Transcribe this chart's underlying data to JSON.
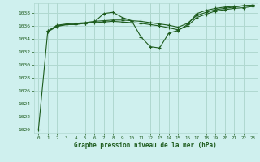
{
  "title": "Graphe pression niveau de la mer (hPa)",
  "background_color": "#cff0ee",
  "grid_color": "#b0d8d0",
  "line_color": "#1e5c1e",
  "marker": "+",
  "marker_size": 3,
  "ylim": [
    1019.5,
    1039.5
  ],
  "yticks": [
    1020,
    1022,
    1024,
    1026,
    1028,
    1030,
    1032,
    1034,
    1036,
    1038
  ],
  "xlim": [
    -0.5,
    23.5
  ],
  "xticks": [
    0,
    1,
    2,
    3,
    4,
    5,
    6,
    7,
    8,
    9,
    10,
    11,
    12,
    13,
    14,
    15,
    16,
    17,
    18,
    19,
    20,
    21,
    22,
    23
  ],
  "line1_x": [
    0,
    1,
    2,
    3,
    4,
    5,
    6,
    7,
    8,
    9,
    10,
    11,
    12,
    13,
    14,
    15,
    16,
    17,
    18,
    19,
    20,
    21,
    22,
    23
  ],
  "line1_y": [
    1020.0,
    1035.2,
    1036.0,
    1036.2,
    1036.2,
    1036.4,
    1036.6,
    1037.9,
    1038.1,
    1037.3,
    1036.8,
    1034.3,
    1032.8,
    1032.6,
    1034.9,
    1035.3,
    1036.2,
    1037.9,
    1038.4,
    1038.7,
    1038.9,
    1039.0,
    1039.1,
    1039.2
  ],
  "line2_x": [
    1,
    2,
    3,
    4,
    5,
    6,
    7,
    8,
    9,
    10,
    11,
    12,
    13,
    14,
    15,
    16,
    17,
    18,
    19,
    20,
    21,
    22,
    23
  ],
  "line2_y": [
    1035.2,
    1036.1,
    1036.3,
    1036.4,
    1036.5,
    1036.7,
    1036.8,
    1036.9,
    1036.9,
    1036.8,
    1036.7,
    1036.5,
    1036.3,
    1036.1,
    1035.8,
    1036.4,
    1037.6,
    1038.1,
    1038.5,
    1038.7,
    1038.9,
    1039.1,
    1039.2
  ],
  "line3_x": [
    1,
    2,
    3,
    4,
    5,
    6,
    7,
    8,
    9,
    10,
    11,
    12,
    13,
    14,
    15,
    16,
    17,
    18,
    19,
    20,
    21,
    22,
    23
  ],
  "line3_y": [
    1035.1,
    1035.9,
    1036.2,
    1036.3,
    1036.4,
    1036.5,
    1036.6,
    1036.7,
    1036.6,
    1036.5,
    1036.4,
    1036.2,
    1036.0,
    1035.7,
    1035.4,
    1036.0,
    1037.3,
    1037.8,
    1038.3,
    1038.5,
    1038.7,
    1038.8,
    1039.0
  ]
}
